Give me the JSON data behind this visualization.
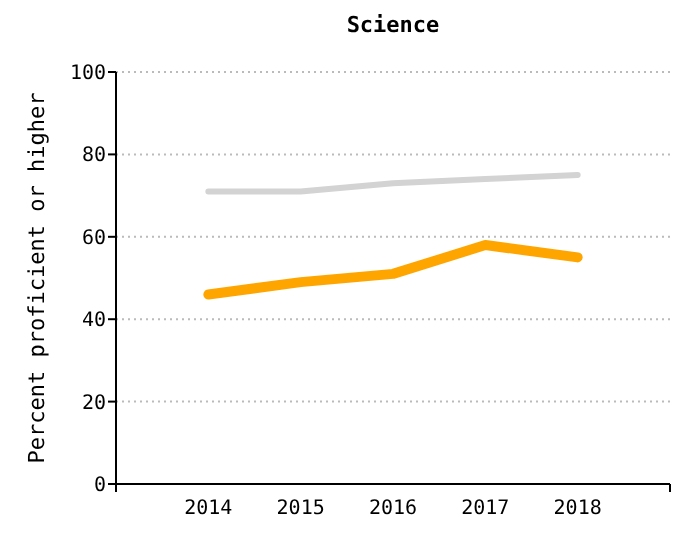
{
  "chart_data": {
    "type": "line",
    "title": "Science",
    "ylabel": "Percent proficient or higher",
    "categories": [
      "2014",
      "2015",
      "2016",
      "2017",
      "2018"
    ],
    "series": [
      {
        "color": "#d3d3d3",
        "values": [
          71,
          71,
          73,
          74,
          75
        ]
      },
      {
        "color": "#ffa500",
        "values": [
          46,
          49,
          51,
          58,
          55
        ]
      }
    ],
    "ylim": [
      0,
      100
    ],
    "yticks": [
      0,
      20,
      40,
      60,
      80,
      100
    ],
    "grid": "y"
  }
}
